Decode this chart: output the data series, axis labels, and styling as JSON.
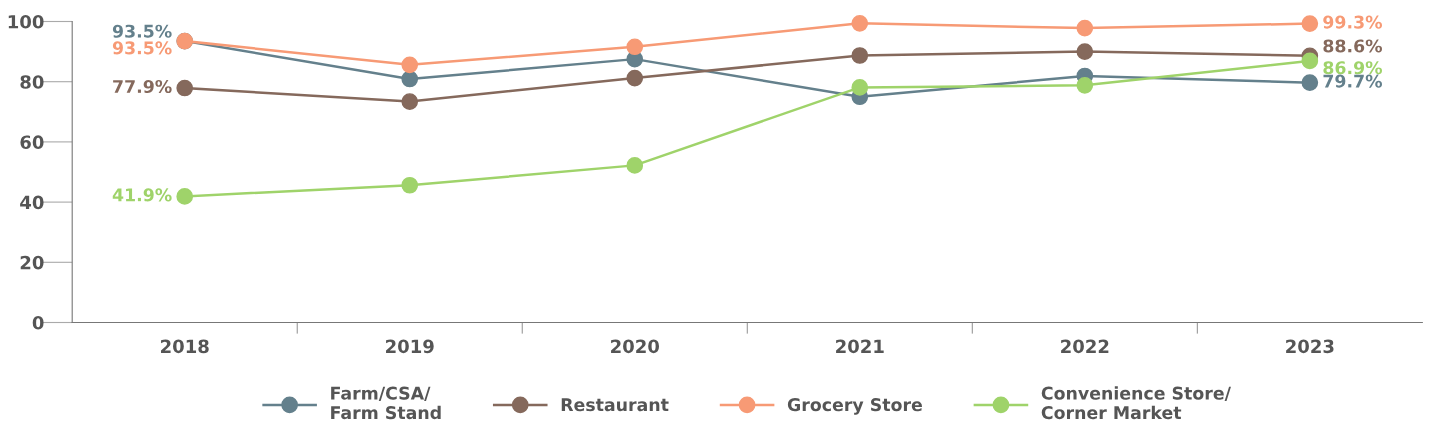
{
  "chart_data": {
    "type": "line",
    "categories": [
      "2018",
      "2019",
      "2020",
      "2021",
      "2022",
      "2023"
    ],
    "series": [
      {
        "name": "Farm/CSA/\nFarm Stand",
        "color": "#64808c",
        "values": [
          93.5,
          80.9,
          87.5,
          75.0,
          81.9,
          79.7
        ],
        "value_labels": [
          "93.5%",
          null,
          null,
          null,
          null,
          "79.7%"
        ]
      },
      {
        "name": "Restaurant",
        "color": "#85695c",
        "values": [
          77.9,
          73.4,
          81.2,
          88.7,
          90.0,
          88.6
        ],
        "value_labels": [
          "77.9%",
          null,
          null,
          null,
          null,
          "88.6%"
        ]
      },
      {
        "name": "Grocery Store",
        "color": "#f79a75",
        "values": [
          93.5,
          85.6,
          91.6,
          99.4,
          97.8,
          99.3
        ],
        "value_labels": [
          "93.5%",
          null,
          null,
          null,
          null,
          "99.3%"
        ]
      },
      {
        "name": "Convenience Store/\nCorner Market",
        "color": "#9fd36a",
        "values": [
          41.9,
          45.6,
          52.2,
          78.1,
          78.8,
          86.9
        ],
        "value_labels": [
          "41.9%",
          null,
          null,
          null,
          null,
          "86.9%"
        ]
      }
    ],
    "ylim": [
      0,
      100
    ],
    "yticks": [
      0,
      20,
      40,
      60,
      80,
      100
    ],
    "grid": false,
    "legend": "bottom",
    "marker": "circle",
    "line_style": "solid"
  }
}
